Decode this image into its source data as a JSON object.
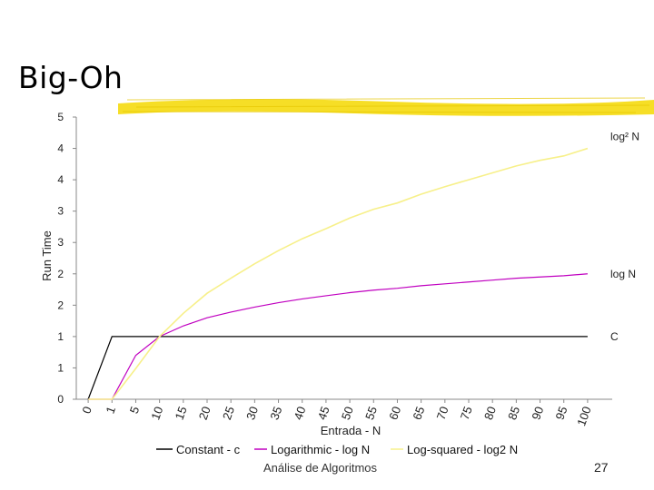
{
  "slide": {
    "title": "Big-Oh",
    "footer": "Análise de Algoritmos",
    "page_number": "27",
    "highlight_color": "#f5d800"
  },
  "chart_data": {
    "type": "line",
    "xlabel": "Entrada - N",
    "ylabel": "Run Time",
    "x_ticks": [
      "0",
      "1",
      "5",
      "10",
      "15",
      "20",
      "25",
      "30",
      "35",
      "40",
      "45",
      "50",
      "55",
      "60",
      "65",
      "70",
      "75",
      "80",
      "85",
      "90",
      "95",
      "100"
    ],
    "y_ticks": [
      "0",
      "1",
      "1",
      "2",
      "2",
      "3",
      "3",
      "4",
      "4",
      "5"
    ],
    "ylim": [
      0,
      4.5
    ],
    "grid": false,
    "legend_position": "bottom",
    "series": [
      {
        "name": "Constant - c",
        "color": "#000000",
        "end_label": "C",
        "values": [
          0,
          1,
          1,
          1,
          1,
          1,
          1,
          1,
          1,
          1,
          1,
          1,
          1,
          1,
          1,
          1,
          1,
          1,
          1,
          1,
          1,
          1
        ]
      },
      {
        "name": "Logarithmic - log N",
        "color": "#c000c0",
        "end_label": "log N",
        "values": [
          0,
          0,
          0.7,
          1.0,
          1.17,
          1.3,
          1.39,
          1.47,
          1.54,
          1.6,
          1.65,
          1.7,
          1.74,
          1.77,
          1.81,
          1.84,
          1.87,
          1.9,
          1.93,
          1.95,
          1.97,
          2.0
        ]
      },
      {
        "name": "Log-squared - log2 N",
        "color": "#f7f08a",
        "end_label": "log² N",
        "values": [
          0,
          0,
          0.49,
          1.0,
          1.37,
          1.69,
          1.93,
          2.16,
          2.37,
          2.56,
          2.72,
          2.89,
          3.03,
          3.13,
          3.27,
          3.39,
          3.5,
          3.61,
          3.72,
          3.81,
          3.88,
          4.0
        ]
      }
    ]
  }
}
